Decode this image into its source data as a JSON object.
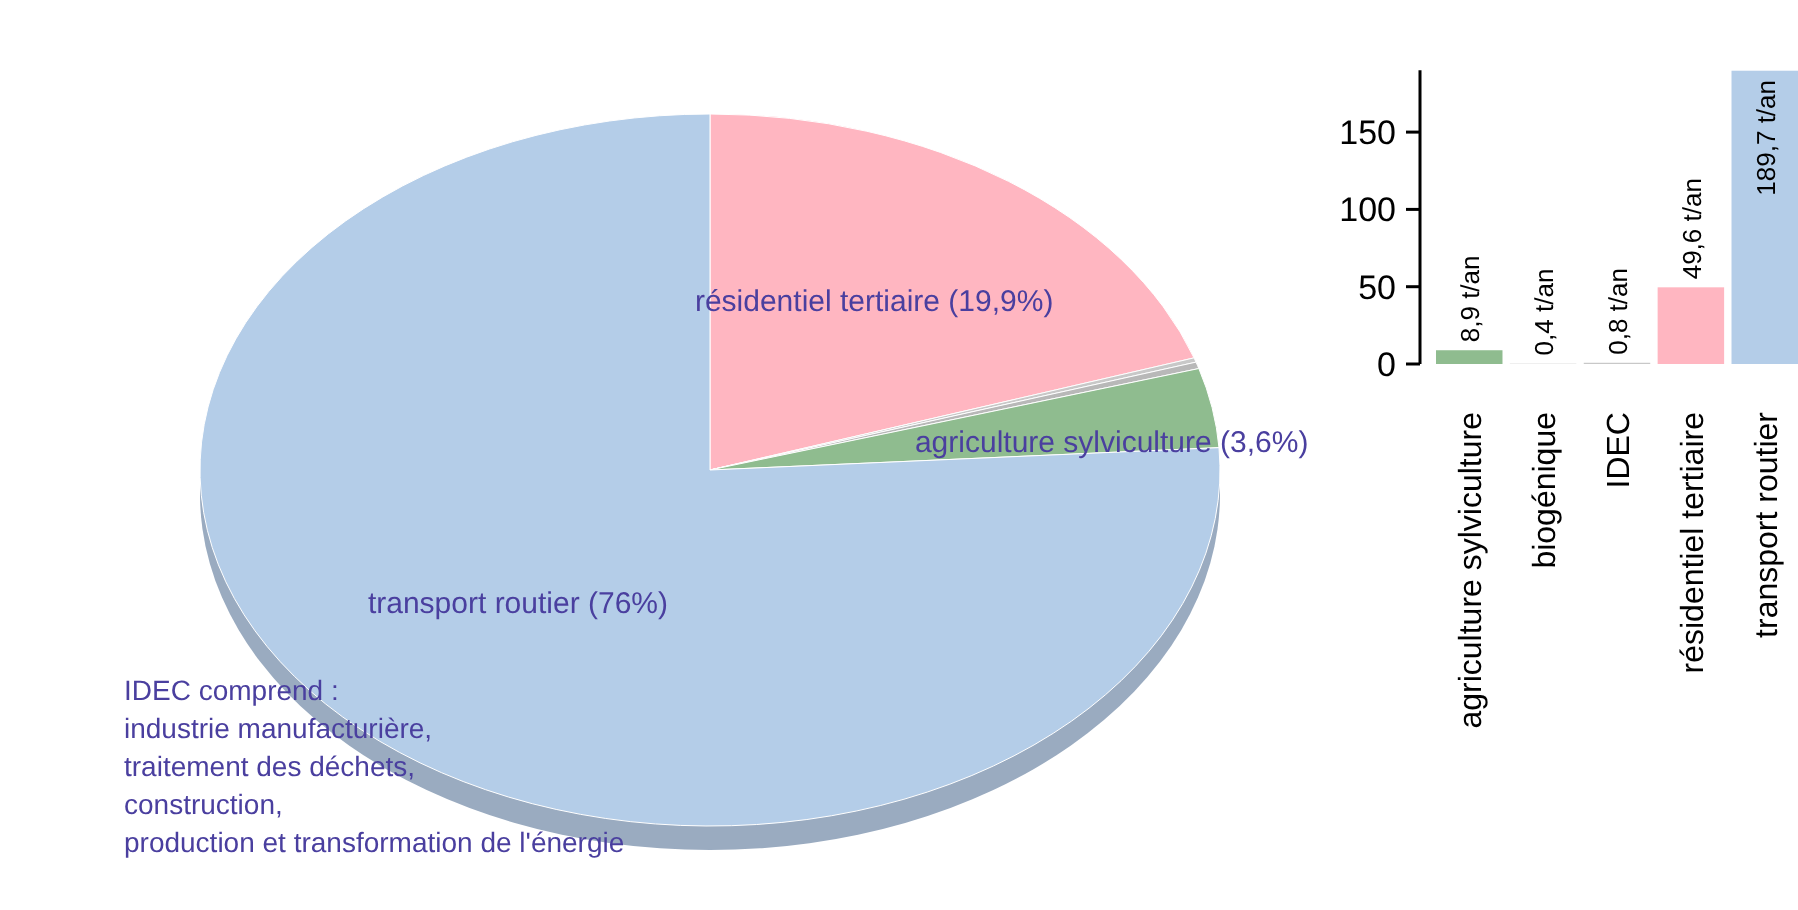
{
  "chart_data": [
    {
      "type": "pie",
      "categories": [
        "résidentiel tertiaire",
        null,
        null,
        "agriculture sylviculture",
        "transport routier"
      ],
      "values": [
        19.9,
        0.2,
        0.3,
        3.6,
        76
      ],
      "value_labels": [
        "(19,9%)",
        null,
        null,
        "(3,6%)",
        "(76%)"
      ],
      "colors": [
        "#ffb6c1",
        "#c8c8c8",
        "#b8b8b8",
        "#8fbc8f",
        "#b4cde8"
      ],
      "annotations": [
        "IDEC comprend :\nindustrie manufacturière,\ntraitement des déchets,\nconstruction,\nproduction et transformation de l'énergie"
      ]
    },
    {
      "type": "bar",
      "categories": [
        "agriculture sylviculture",
        "biogénique",
        "IDEC",
        "résidentiel tertiaire",
        "transport routier"
      ],
      "values": [
        8.9,
        0.4,
        0.8,
        49.6,
        189.7
      ],
      "value_labels": [
        "8,9 t/an",
        "0,4 t/an",
        "0,8 t/an",
        "49,6 t/an",
        "189,7 t/an"
      ],
      "colors": [
        "#8fbc8f",
        "#e6e6e6",
        "#c8c8c8",
        "#ffb6c1",
        "#b4cde8"
      ],
      "ylim": [
        0,
        190
      ],
      "yticks": [
        0,
        50,
        100,
        150
      ]
    }
  ]
}
